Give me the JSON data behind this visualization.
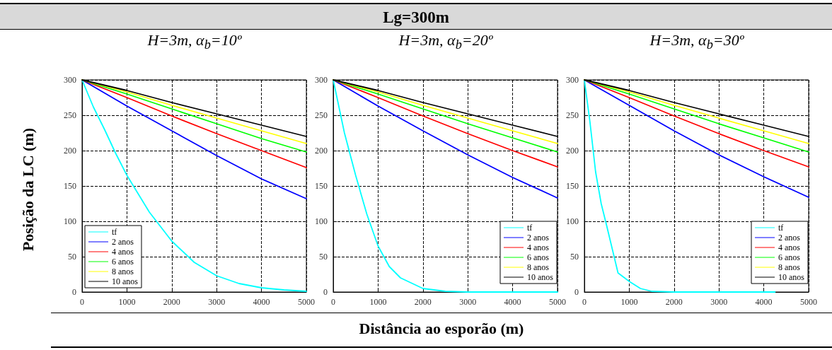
{
  "chart_data": [
    {
      "type": "line",
      "subtitle": "H=3m, α$_{b}$=10º",
      "ylabel": "Posição da LC (m)",
      "xlim": [
        0,
        5000
      ],
      "xticks": [
        0,
        1000,
        2000,
        3000,
        4000,
        5000
      ],
      "ylim": [
        0,
        300
      ],
      "yticks": [
        0,
        50,
        100,
        150,
        200,
        250,
        300
      ],
      "grid": true,
      "legend": "bottom left",
      "line_style": "solid",
      "marker": "none",
      "series": [
        {
          "name": "tf",
          "color": "#00ffff",
          "x": [
            0,
            250,
            500,
            750,
            1000,
            1500,
            2000,
            2500,
            3000,
            3500,
            4000,
            4500,
            5000
          ],
          "values": [
            300,
            262,
            230,
            196,
            165,
            113,
            72,
            42,
            23,
            12,
            6,
            3,
            1
          ]
        },
        {
          "name": "2 anos",
          "color": "#0000ff",
          "x": [
            0,
            1000,
            2000,
            3000,
            4000,
            5000
          ],
          "values": [
            300,
            263,
            228,
            193,
            160,
            132
          ]
        },
        {
          "name": "4 anos",
          "color": "#ff0000",
          "x": [
            0,
            1000,
            2000,
            3000,
            4000,
            5000
          ],
          "values": [
            300,
            275,
            249,
            224,
            200,
            176
          ]
        },
        {
          "name": "6 anos",
          "color": "#00ff00",
          "x": [
            0,
            1000,
            2000,
            3000,
            4000,
            5000
          ],
          "values": [
            300,
            280,
            259,
            238,
            217,
            198
          ]
        },
        {
          "name": "8 anos",
          "color": "#ffff00",
          "x": [
            0,
            1000,
            2000,
            3000,
            4000,
            5000
          ],
          "values": [
            300,
            283,
            264,
            246,
            228,
            210
          ]
        },
        {
          "name": "10 anos",
          "color": "#000000",
          "x": [
            0,
            1000,
            2000,
            3000,
            4000,
            5000
          ],
          "values": [
            300,
            285,
            268,
            252,
            236,
            220
          ]
        }
      ]
    },
    {
      "type": "line",
      "title": "Lg=300m",
      "xlabel": "Distância ao esporão (m)",
      "subtitle": "H=3m, α$_{b}$=20º",
      "xlim": [
        0,
        5000
      ],
      "xticks": [
        0,
        1000,
        2000,
        3000,
        4000,
        5000
      ],
      "ylim": [
        0,
        300
      ],
      "yticks": [
        0,
        50,
        100,
        150,
        200,
        250,
        300
      ],
      "grid": true,
      "legend": "bottom right",
      "line_style": "solid",
      "marker": "none",
      "series": [
        {
          "name": "tf",
          "color": "#00ffff",
          "x": [
            0,
            250,
            500,
            750,
            1000,
            1250,
            1500,
            2000,
            2500,
            3000,
            5000
          ],
          "values": [
            300,
            225,
            165,
            110,
            65,
            36,
            20,
            5,
            1,
            0,
            0
          ]
        },
        {
          "name": "2 anos",
          "color": "#0000ff",
          "x": [
            0,
            1000,
            2000,
            3000,
            4000,
            5000
          ],
          "values": [
            300,
            263,
            228,
            194,
            162,
            133
          ]
        },
        {
          "name": "4 anos",
          "color": "#ff0000",
          "x": [
            0,
            1000,
            2000,
            3000,
            4000,
            5000
          ],
          "values": [
            300,
            275,
            249,
            224,
            200,
            177
          ]
        },
        {
          "name": "6 anos",
          "color": "#00ff00",
          "x": [
            0,
            1000,
            2000,
            3000,
            4000,
            5000
          ],
          "values": [
            300,
            280,
            259,
            238,
            218,
            198
          ]
        },
        {
          "name": "8 anos",
          "color": "#ffff00",
          "x": [
            0,
            1000,
            2000,
            3000,
            4000,
            5000
          ],
          "values": [
            300,
            283,
            264,
            246,
            228,
            210
          ]
        },
        {
          "name": "10 anos",
          "color": "#000000",
          "x": [
            0,
            1000,
            2000,
            3000,
            4000,
            5000
          ],
          "values": [
            300,
            285,
            268,
            252,
            236,
            220
          ]
        }
      ]
    },
    {
      "type": "line",
      "subtitle": "H=3m, α$_{b}$=30º",
      "xlim": [
        0,
        5000
      ],
      "xticks": [
        0,
        1000,
        2000,
        3000,
        4000,
        5000
      ],
      "ylim": [
        0,
        300
      ],
      "yticks": [
        0,
        50,
        100,
        150,
        200,
        250,
        300
      ],
      "grid": true,
      "legend": "bottom right",
      "line_style": "solid",
      "marker": "none",
      "series": [
        {
          "name": "tf",
          "color": "#00ffff",
          "x": [
            0,
            125,
            250,
            375,
            500,
            750,
            1000,
            1250,
            1500,
            2000,
            4250
          ],
          "values": [
            300,
            240,
            170,
            125,
            93,
            27,
            15,
            5,
            1,
            0,
            0
          ]
        },
        {
          "name": "2 anos",
          "color": "#0000ff",
          "x": [
            0,
            1000,
            2000,
            3000,
            4000,
            5000
          ],
          "values": [
            300,
            264,
            228,
            194,
            163,
            134
          ]
        },
        {
          "name": "4 anos",
          "color": "#ff0000",
          "x": [
            0,
            1000,
            2000,
            3000,
            4000,
            5000
          ],
          "values": [
            300,
            275,
            249,
            224,
            200,
            177
          ]
        },
        {
          "name": "6 anos",
          "color": "#00ff00",
          "x": [
            0,
            1000,
            2000,
            3000,
            4000,
            5000
          ],
          "values": [
            300,
            280,
            259,
            238,
            218,
            198
          ]
        },
        {
          "name": "8 anos",
          "color": "#ffff00",
          "x": [
            0,
            1000,
            2000,
            3000,
            4000,
            5000
          ],
          "values": [
            300,
            283,
            264,
            246,
            228,
            210
          ]
        },
        {
          "name": "10 anos",
          "color": "#000000",
          "x": [
            0,
            1000,
            2000,
            3000,
            4000,
            5000
          ],
          "values": [
            300,
            285,
            268,
            252,
            236,
            220
          ]
        }
      ]
    }
  ]
}
